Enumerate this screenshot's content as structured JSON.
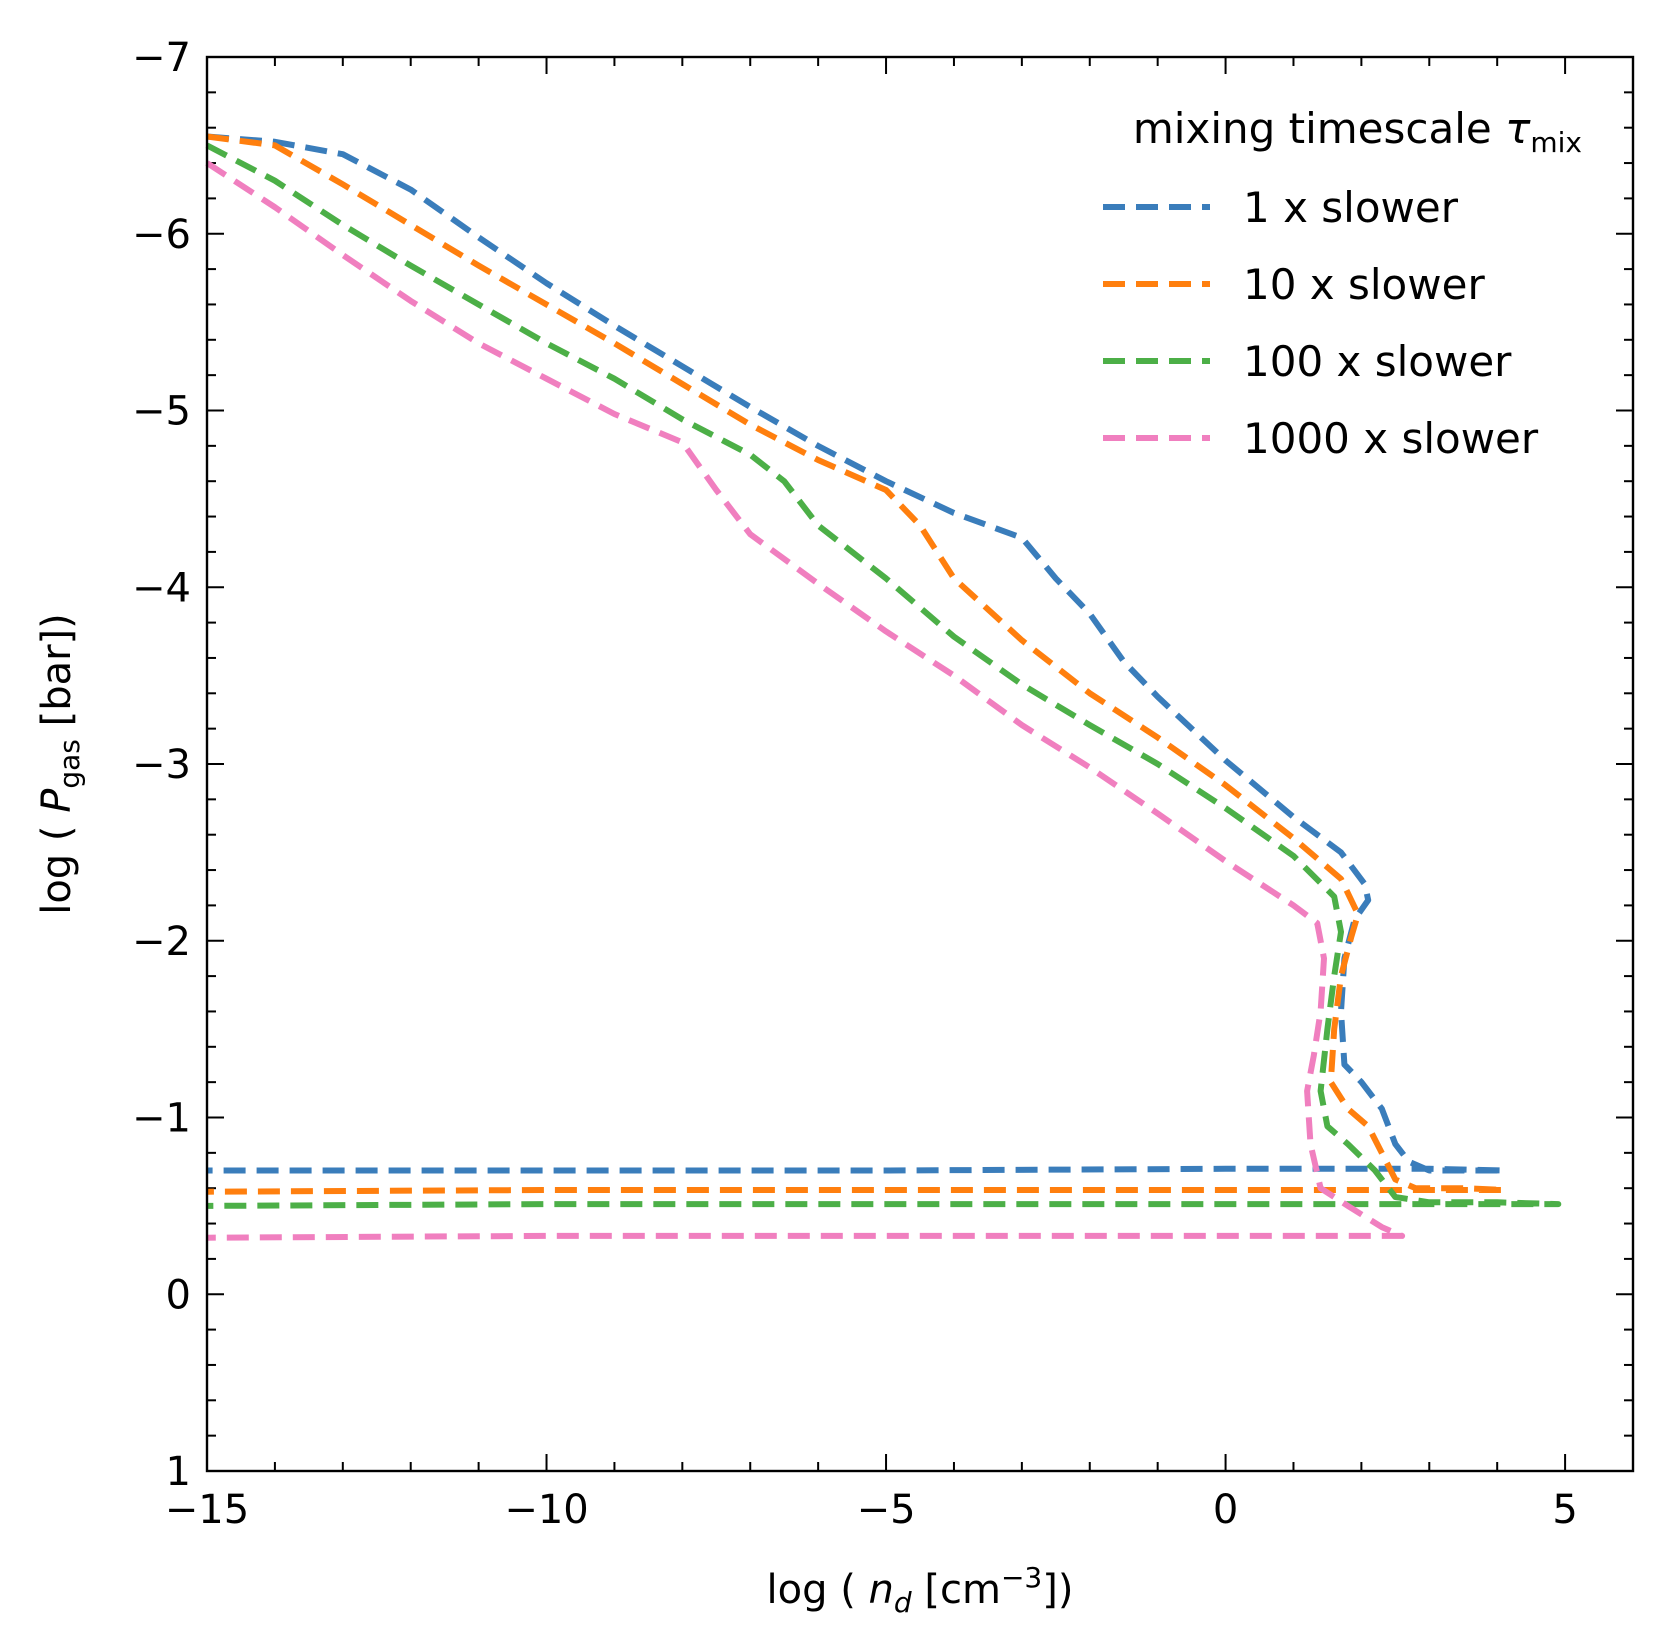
{
  "chart_data": {
    "type": "line",
    "xlim": [
      -15,
      6
    ],
    "ylim": [
      1,
      -7
    ],
    "y_inverted": true,
    "xticks": [
      -15,
      -10,
      -5,
      0,
      5
    ],
    "xtick_labels": [
      "−15",
      "−10",
      "−5",
      "0",
      "5"
    ],
    "x_minor_step": 1,
    "yticks": [
      -7,
      -6,
      -5,
      -4,
      -3,
      -2,
      -1,
      0,
      1
    ],
    "ytick_labels": [
      "−7",
      "−6",
      "−5",
      "−4",
      "−3",
      "−2",
      "−1",
      "0",
      "1"
    ],
    "y_minor_step": 0.2,
    "xlabel": {
      "prefix": "log ( ",
      "var": "n",
      "sub": "d",
      "mid": " [cm",
      "sup": "−3",
      "suffix": "])"
    },
    "ylabel": {
      "prefix": "log ( ",
      "var": "P",
      "sub": "gas",
      "suffix": " [bar])"
    },
    "legend": {
      "title_prefix": "mixing timescale ",
      "title_symbol": "τ",
      "title_sub": "mix",
      "location": "upper right"
    },
    "series": [
      {
        "name": "1 x slower",
        "color": "#3a7dbb",
        "points": [
          [
            -15,
            -6.55
          ],
          [
            -14,
            -6.52
          ],
          [
            -13,
            -6.45
          ],
          [
            -12,
            -6.25
          ],
          [
            -11,
            -5.98
          ],
          [
            -10,
            -5.72
          ],
          [
            -9,
            -5.48
          ],
          [
            -8,
            -5.25
          ],
          [
            -7,
            -5.02
          ],
          [
            -6,
            -4.8
          ],
          [
            -5,
            -4.6
          ],
          [
            -4,
            -4.42
          ],
          [
            -3,
            -4.28
          ],
          [
            -2.5,
            -4.05
          ],
          [
            -2,
            -3.85
          ],
          [
            -1.5,
            -3.58
          ],
          [
            -1,
            -3.38
          ],
          [
            0,
            -3.02
          ],
          [
            1,
            -2.7
          ],
          [
            1.7,
            -2.5
          ],
          [
            2.05,
            -2.32
          ],
          [
            2.1,
            -2.23
          ],
          [
            1.9,
            -2.12
          ],
          [
            1.75,
            -1.9
          ],
          [
            1.7,
            -1.6
          ],
          [
            1.75,
            -1.3
          ],
          [
            2.0,
            -1.2
          ],
          [
            2.3,
            -1.05
          ],
          [
            2.5,
            -0.85
          ],
          [
            2.7,
            -0.75
          ],
          [
            3.0,
            -0.7
          ],
          [
            3.5,
            -0.7
          ],
          [
            4.1,
            -0.7
          ],
          [
            3.0,
            -0.71
          ],
          [
            2.0,
            -0.71
          ],
          [
            0,
            -0.71
          ],
          [
            -5,
            -0.7
          ],
          [
            -10,
            -0.7
          ],
          [
            -15,
            -0.7
          ]
        ]
      },
      {
        "name": "10 x slower",
        "color": "#ff7f0e",
        "points": [
          [
            -15,
            -6.55
          ],
          [
            -14,
            -6.5
          ],
          [
            -13,
            -6.28
          ],
          [
            -12,
            -6.05
          ],
          [
            -11,
            -5.82
          ],
          [
            -10,
            -5.6
          ],
          [
            -9,
            -5.38
          ],
          [
            -8,
            -5.15
          ],
          [
            -7,
            -4.92
          ],
          [
            -6,
            -4.72
          ],
          [
            -5,
            -4.55
          ],
          [
            -4.5,
            -4.35
          ],
          [
            -4,
            -4.05
          ],
          [
            -3,
            -3.7
          ],
          [
            -2,
            -3.4
          ],
          [
            -1,
            -3.15
          ],
          [
            0,
            -2.88
          ],
          [
            1,
            -2.58
          ],
          [
            1.7,
            -2.35
          ],
          [
            1.95,
            -2.15
          ],
          [
            1.85,
            -2.02
          ],
          [
            1.7,
            -1.8
          ],
          [
            1.6,
            -1.5
          ],
          [
            1.55,
            -1.2
          ],
          [
            1.8,
            -1.05
          ],
          [
            2.1,
            -0.95
          ],
          [
            2.3,
            -0.8
          ],
          [
            2.5,
            -0.65
          ],
          [
            2.8,
            -0.6
          ],
          [
            3.5,
            -0.6
          ],
          [
            4.1,
            -0.59
          ],
          [
            2.0,
            -0.59
          ],
          [
            0,
            -0.59
          ],
          [
            -5,
            -0.59
          ],
          [
            -10,
            -0.59
          ],
          [
            -15,
            -0.58
          ]
        ]
      },
      {
        "name": "100 x slower",
        "color": "#4caf47",
        "points": [
          [
            -15,
            -6.5
          ],
          [
            -14,
            -6.3
          ],
          [
            -13,
            -6.05
          ],
          [
            -12,
            -5.82
          ],
          [
            -11,
            -5.6
          ],
          [
            -10,
            -5.38
          ],
          [
            -9,
            -5.18
          ],
          [
            -8,
            -4.95
          ],
          [
            -7,
            -4.75
          ],
          [
            -6.5,
            -4.6
          ],
          [
            -6,
            -4.35
          ],
          [
            -5,
            -4.05
          ],
          [
            -4,
            -3.72
          ],
          [
            -3,
            -3.45
          ],
          [
            -2,
            -3.22
          ],
          [
            -1,
            -3.0
          ],
          [
            0,
            -2.75
          ],
          [
            1,
            -2.48
          ],
          [
            1.6,
            -2.25
          ],
          [
            1.7,
            -2.05
          ],
          [
            1.6,
            -1.8
          ],
          [
            1.5,
            -1.5
          ],
          [
            1.4,
            -1.15
          ],
          [
            1.5,
            -0.95
          ],
          [
            1.8,
            -0.85
          ],
          [
            2.2,
            -0.7
          ],
          [
            2.5,
            -0.55
          ],
          [
            3.0,
            -0.52
          ],
          [
            4.0,
            -0.52
          ],
          [
            4.9,
            -0.51
          ],
          [
            3.0,
            -0.51
          ],
          [
            0,
            -0.51
          ],
          [
            -5,
            -0.51
          ],
          [
            -10,
            -0.51
          ],
          [
            -15,
            -0.5
          ]
        ]
      },
      {
        "name": "1000 x slower",
        "color": "#f07fbf",
        "points": [
          [
            -15,
            -6.4
          ],
          [
            -14,
            -6.15
          ],
          [
            -13,
            -5.88
          ],
          [
            -12,
            -5.62
          ],
          [
            -11,
            -5.38
          ],
          [
            -10,
            -5.18
          ],
          [
            -9,
            -4.98
          ],
          [
            -8,
            -4.82
          ],
          [
            -7.5,
            -4.55
          ],
          [
            -7,
            -4.3
          ],
          [
            -6,
            -4.02
          ],
          [
            -5,
            -3.75
          ],
          [
            -4,
            -3.5
          ],
          [
            -3,
            -3.22
          ],
          [
            -2,
            -2.98
          ],
          [
            -1,
            -2.72
          ],
          [
            0,
            -2.45
          ],
          [
            1,
            -2.2
          ],
          [
            1.35,
            -2.1
          ],
          [
            1.45,
            -1.9
          ],
          [
            1.4,
            -1.6
          ],
          [
            1.3,
            -1.35
          ],
          [
            1.2,
            -1.15
          ],
          [
            1.25,
            -0.85
          ],
          [
            1.4,
            -0.6
          ],
          [
            1.8,
            -0.5
          ],
          [
            2.3,
            -0.38
          ],
          [
            2.6,
            -0.33
          ],
          [
            2.0,
            -0.33
          ],
          [
            0,
            -0.33
          ],
          [
            -5,
            -0.33
          ],
          [
            -10,
            -0.33
          ],
          [
            -15,
            -0.32
          ]
        ]
      }
    ]
  }
}
